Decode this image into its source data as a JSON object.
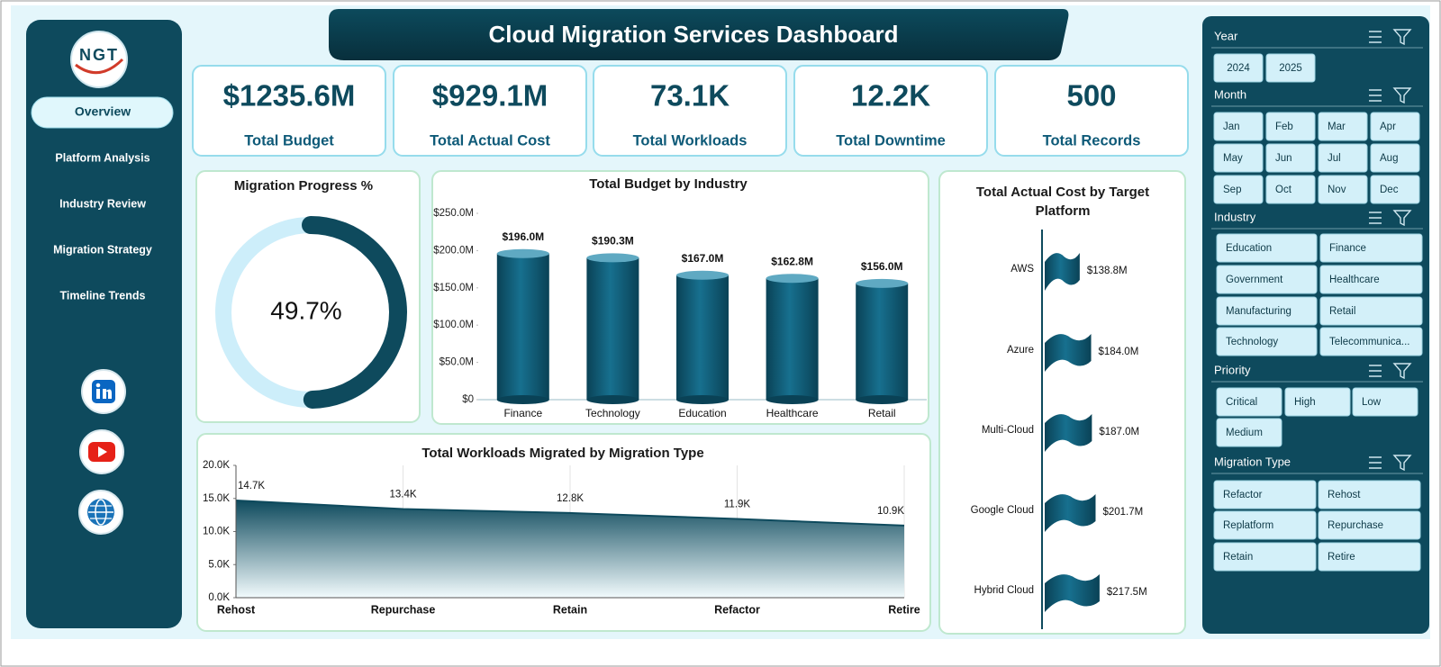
{
  "header": {
    "title": "Cloud Migration Services Dashboard"
  },
  "logo": {
    "text": "NGT"
  },
  "nav": [
    "Overview",
    "Platform Analysis",
    "Industry Review",
    "Migration Strategy",
    "Timeline Trends"
  ],
  "kpis": [
    {
      "value": "$1235.6M",
      "label": "Total Budget"
    },
    {
      "value": "$929.1M",
      "label": "Total Actual Cost"
    },
    {
      "value": "73.1K",
      "label": "Total Workloads"
    },
    {
      "value": "12.2K",
      "label": "Total Downtime"
    },
    {
      "value": "500",
      "label": "Total Records"
    }
  ],
  "chart_data": [
    {
      "type": "doughnut",
      "title": "Migration Progress %",
      "values": [
        49.7
      ],
      "value_labels": [
        "49.7%"
      ],
      "color": "#0e4a5d",
      "track_color": "#cdeefa"
    },
    {
      "type": "bar",
      "title": "Total Budget by Industry",
      "categories": [
        "Finance",
        "Technology",
        "Education",
        "Healthcare",
        "Retail"
      ],
      "values": [
        196.0,
        190.3,
        167.0,
        162.8,
        156.0
      ],
      "value_labels": [
        "$196.0M",
        "$190.3M",
        "$167.0M",
        "$162.8M",
        "$156.0M"
      ],
      "color": "#0e5a78",
      "ylim": [
        0,
        250
      ],
      "yticks": [
        {
          "value": 0,
          "label": "$0"
        },
        {
          "value": 50,
          "label": "$50.0M"
        },
        {
          "value": 100,
          "label": "$100.0M"
        },
        {
          "value": 150,
          "label": "$150.0M"
        },
        {
          "value": 200,
          "label": "$200.0M"
        },
        {
          "value": 250,
          "label": "$250.0M"
        }
      ],
      "grid": false
    },
    {
      "type": "hbar",
      "title": "Total Actual Cost by Target Platform",
      "categories": [
        "AWS",
        "Azure",
        "Multi-Cloud",
        "Google Cloud",
        "Hybrid Cloud"
      ],
      "values": [
        138.8,
        184.0,
        187.0,
        201.7,
        217.5
      ],
      "value_labels": [
        "$138.8M",
        "$184.0M",
        "$187.0M",
        "$201.7M",
        "$217.5M"
      ],
      "color": "#0e5a78"
    },
    {
      "type": "area",
      "title": "Total Workloads Migrated by Migration Type",
      "categories": [
        "Rehost",
        "Repurchase",
        "Retain",
        "Refactor",
        "Retire"
      ],
      "values": [
        14.7,
        13.4,
        12.8,
        11.9,
        10.9
      ],
      "value_labels": [
        "14.7K",
        "13.4K",
        "12.8K",
        "11.9K",
        "10.9K"
      ],
      "color": "#0e4a5d",
      "ylim": [
        0,
        20
      ],
      "yticks": [
        {
          "value": 0,
          "label": "0.0K"
        },
        {
          "value": 5,
          "label": "5.0K"
        },
        {
          "value": 10,
          "label": "10.0K"
        },
        {
          "value": 15,
          "label": "15.0K"
        },
        {
          "value": 20,
          "label": "20.0K"
        }
      ]
    }
  ],
  "slicers": [
    {
      "title": "Year",
      "items": [
        "2024",
        "2025"
      ]
    },
    {
      "title": "Month",
      "items": [
        "Jan",
        "Feb",
        "Mar",
        "Apr",
        "May",
        "Jun",
        "Jul",
        "Aug",
        "Sep",
        "Oct",
        "Nov",
        "Dec"
      ]
    },
    {
      "title": "Industry",
      "items": [
        "Education",
        "Finance",
        "Government",
        "Healthcare",
        "Manufacturing",
        "Retail",
        "Technology",
        "Telecommunica..."
      ]
    },
    {
      "title": "Priority",
      "items": [
        "Critical",
        "High",
        "Low",
        "Medium"
      ]
    },
    {
      "title": "Migration Type",
      "items": [
        "Refactor",
        "Rehost",
        "Replatform",
        "Repurchase",
        "Retain",
        "Retire"
      ]
    }
  ]
}
